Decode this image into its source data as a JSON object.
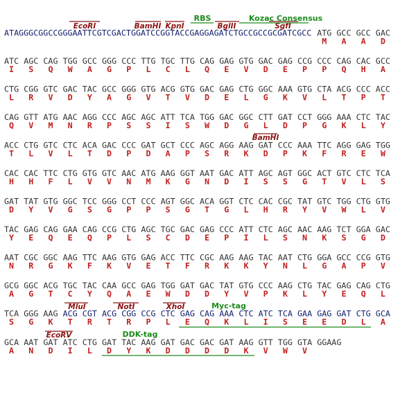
{
  "rows": [
    {
      "leader": "ATAGGGCGGCCGGGAATTCGTCGACTGGATCCGGTACCGAGGAGATCTGCCGCCGCGATCGCC",
      "codons": [
        "ATG",
        "GCC",
        "GCC",
        "GAC"
      ],
      "aa": [
        "M",
        "A",
        "A",
        "D"
      ]
    },
    {
      "codons": [
        "ATC",
        "AGC",
        "CAG",
        "TGG",
        "GCC",
        "GGG",
        "CCC",
        "TTG",
        "TGC",
        "TTG",
        "CAG",
        "GAG",
        "GTG",
        "GAC",
        "GAG",
        "CCG",
        "CCC",
        "CAG",
        "CAC",
        "GCC"
      ],
      "aa": [
        "I",
        "S",
        "Q",
        "W",
        "A",
        "G",
        "P",
        "L",
        "C",
        "L",
        "Q",
        "E",
        "V",
        "D",
        "E",
        "P",
        "P",
        "Q",
        "H",
        "A"
      ]
    },
    {
      "codons": [
        "CTG",
        "CGG",
        "GTC",
        "GAC",
        "TAC",
        "GCC",
        "GGG",
        "GTG",
        "ACG",
        "GTG",
        "GAC",
        "GAG",
        "CTG",
        "GGC",
        "AAA",
        "GTG",
        "CTA",
        "ACG",
        "CCC",
        "ACC"
      ],
      "aa": [
        "L",
        "R",
        "V",
        "D",
        "Y",
        "A",
        "G",
        "V",
        "T",
        "V",
        "D",
        "E",
        "L",
        "G",
        "K",
        "V",
        "L",
        "T",
        "P",
        "T"
      ]
    },
    {
      "codons": [
        "CAG",
        "GTT",
        "ATG",
        "AAC",
        "AGG",
        "CCC",
        "AGC",
        "AGC",
        "ATT",
        "TCA",
        "TGG",
        "GAC",
        "GGC",
        "CTT",
        "GAT",
        "CCT",
        "GGG",
        "AAA",
        "CTC",
        "TAC"
      ],
      "aa": [
        "Q",
        "V",
        "M",
        "N",
        "R",
        "P",
        "S",
        "S",
        "I",
        "S",
        "W",
        "D",
        "G",
        "L",
        "D",
        "P",
        "G",
        "K",
        "L",
        "Y"
      ]
    },
    {
      "codons": [
        "ACC",
        "CTG",
        "GTC",
        "CTC",
        "ACA",
        "GAC",
        "CCC",
        "GAT",
        "GCT",
        "CCC",
        "AGC",
        "AGG",
        "AAG",
        "GAT",
        "CCC",
        "AAA",
        "TTC",
        "AGG",
        "GAG",
        "TGG"
      ],
      "aa": [
        "T",
        "L",
        "V",
        "L",
        "T",
        "D",
        "P",
        "D",
        "A",
        "P",
        "S",
        "R",
        "K",
        "D",
        "P",
        "K",
        "F",
        "R",
        "E",
        "W"
      ]
    },
    {
      "codons": [
        "CAC",
        "CAC",
        "TTC",
        "CTG",
        "GTG",
        "GTC",
        "AAC",
        "ATG",
        "AAG",
        "GGT",
        "AAT",
        "GAC",
        "ATT",
        "AGC",
        "AGT",
        "GGC",
        "ACT",
        "GTC",
        "CTC",
        "TCA"
      ],
      "aa": [
        "H",
        "H",
        "F",
        "L",
        "V",
        "V",
        "N",
        "M",
        "K",
        "G",
        "N",
        "D",
        "I",
        "S",
        "S",
        "G",
        "T",
        "V",
        "L",
        "S"
      ]
    },
    {
      "codons": [
        "GAT",
        "TAT",
        "GTG",
        "GGC",
        "TCC",
        "GGG",
        "CCT",
        "CCC",
        "AGT",
        "GGC",
        "ACA",
        "GGT",
        "CTC",
        "CAC",
        "CGC",
        "TAT",
        "GTC",
        "TGG",
        "CTG",
        "GTG"
      ],
      "aa": [
        "D",
        "Y",
        "V",
        "G",
        "S",
        "G",
        "P",
        "P",
        "S",
        "G",
        "T",
        "G",
        "L",
        "H",
        "R",
        "Y",
        "V",
        "W",
        "L",
        "V"
      ]
    },
    {
      "codons": [
        "TAC",
        "GAG",
        "CAG",
        "GAA",
        "CAG",
        "CCG",
        "CTG",
        "AGC",
        "TGC",
        "GAC",
        "GAG",
        "CCC",
        "ATT",
        "CTC",
        "AGC",
        "AAC",
        "AAG",
        "TCT",
        "GGA",
        "GAC"
      ],
      "aa": [
        "Y",
        "E",
        "Q",
        "E",
        "Q",
        "P",
        "L",
        "S",
        "C",
        "D",
        "E",
        "P",
        "I",
        "L",
        "S",
        "N",
        "K",
        "S",
        "G",
        "D"
      ]
    },
    {
      "codons": [
        "AAT",
        "CGC",
        "GGC",
        "AAG",
        "TTC",
        "AAG",
        "GTG",
        "GAG",
        "ACC",
        "TTC",
        "CGC",
        "AAG",
        "AAG",
        "TAC",
        "AAT",
        "CTG",
        "GGA",
        "GCC",
        "CCG",
        "GTG"
      ],
      "aa": [
        "N",
        "R",
        "G",
        "K",
        "F",
        "K",
        "V",
        "E",
        "T",
        "F",
        "R",
        "K",
        "K",
        "Y",
        "N",
        "L",
        "G",
        "A",
        "P",
        "V"
      ]
    },
    {
      "codons": [
        "GCG",
        "GGC",
        "ACG",
        "TGC",
        "TAC",
        "CAA",
        "GCC",
        "GAG",
        "TGG",
        "GAT",
        "GAC",
        "TAT",
        "GTG",
        "CCC",
        "AAG",
        "CTG",
        "TAC",
        "GAG",
        "CAG",
        "CTG"
      ],
      "aa": [
        "A",
        "G",
        "T",
        "C",
        "Y",
        "Q",
        "A",
        "E",
        "W",
        "D",
        "D",
        "Y",
        "V",
        "P",
        "K",
        "L",
        "Y",
        "E",
        "Q",
        "L"
      ]
    },
    {
      "codons": [
        "TCA",
        "GGG",
        "AAG",
        "ACG",
        "CGT",
        "ACG",
        "CGG",
        "CCG",
        "CTC",
        "GAG",
        "CAG",
        "AAA",
        "CTC",
        "ATC",
        "TCA",
        "GAA",
        "GAG",
        "GAT",
        "CTG",
        "GCA"
      ],
      "aa": [
        "S",
        "G",
        "K",
        "T",
        "R",
        "T",
        "R",
        "P",
        "L",
        "E",
        "Q",
        "K",
        "L",
        "I",
        "S",
        "E",
        "E",
        "D",
        "L",
        "A"
      ]
    },
    {
      "codons": [
        "GCA",
        "AAT",
        "GAT",
        "ATC",
        "CTG",
        "GAT",
        "TAC",
        "AAG",
        "GAT",
        "GAC",
        "GAC",
        "GAT",
        "AAG",
        "GTT",
        "TGG",
        "GTA",
        "GGAAG"
      ],
      "aa": [
        "A",
        "N",
        "D",
        "I",
        "L",
        "D",
        "Y",
        "K",
        "D",
        "D",
        "D",
        "D",
        "K",
        "V",
        "W",
        "V",
        null
      ]
    }
  ],
  "annotations": [
    "EcoRI",
    "BamHI",
    "KpnI",
    "BglII",
    "SgfI",
    "RBS",
    "Kozac Consensus",
    "BamHI",
    "MluI",
    "NotI",
    "XhoI",
    "Myc-tag",
    "EcoRV",
    "DDK-tag"
  ]
}
